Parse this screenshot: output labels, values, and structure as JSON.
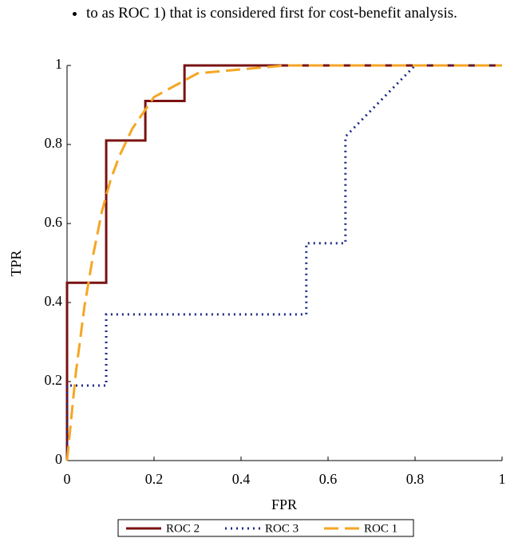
{
  "text": "to as ROC 1) that is considered first for cost-benefit analysis.",
  "chart_data": {
    "type": "line",
    "x_label": "FPR",
    "y_label": "TPR",
    "xlim": [
      0,
      1
    ],
    "ylim": [
      0,
      1
    ],
    "xticks": [
      0,
      0.2,
      0.4,
      0.6,
      0.8,
      1
    ],
    "yticks": [
      0,
      0.2,
      0.4,
      0.6,
      0.8,
      1
    ],
    "grid": false,
    "legend": "bottom",
    "series": [
      {
        "name": "ROC 2",
        "color": "#7a1212",
        "style": "solid",
        "x": [
          0,
          0,
          0.09,
          0.09,
          0.18,
          0.18,
          0.27,
          0.27,
          1
        ],
        "values": [
          0,
          0.45,
          0.45,
          0.81,
          0.81,
          0.91,
          0.91,
          1,
          1
        ]
      },
      {
        "name": "ROC 3",
        "color": "#1c2a85",
        "style": "dotted",
        "x": [
          0,
          0,
          0.09,
          0.09,
          0.55,
          0.55,
          0.64,
          0.64,
          0.8,
          1
        ],
        "values": [
          0,
          0.19,
          0.19,
          0.37,
          0.37,
          0.55,
          0.55,
          0.82,
          1,
          1
        ]
      },
      {
        "name": "ROC 1",
        "color": "#f5a623",
        "style": "dashed",
        "x": [
          0,
          0.02,
          0.04,
          0.06,
          0.08,
          0.1,
          0.12,
          0.15,
          0.2,
          0.25,
          0.3,
          0.4,
          0.5,
          0.6,
          0.8,
          1
        ],
        "values": [
          0,
          0.22,
          0.39,
          0.52,
          0.63,
          0.71,
          0.77,
          0.84,
          0.92,
          0.95,
          0.98,
          0.99,
          1,
          1,
          1,
          1
        ]
      }
    ]
  }
}
